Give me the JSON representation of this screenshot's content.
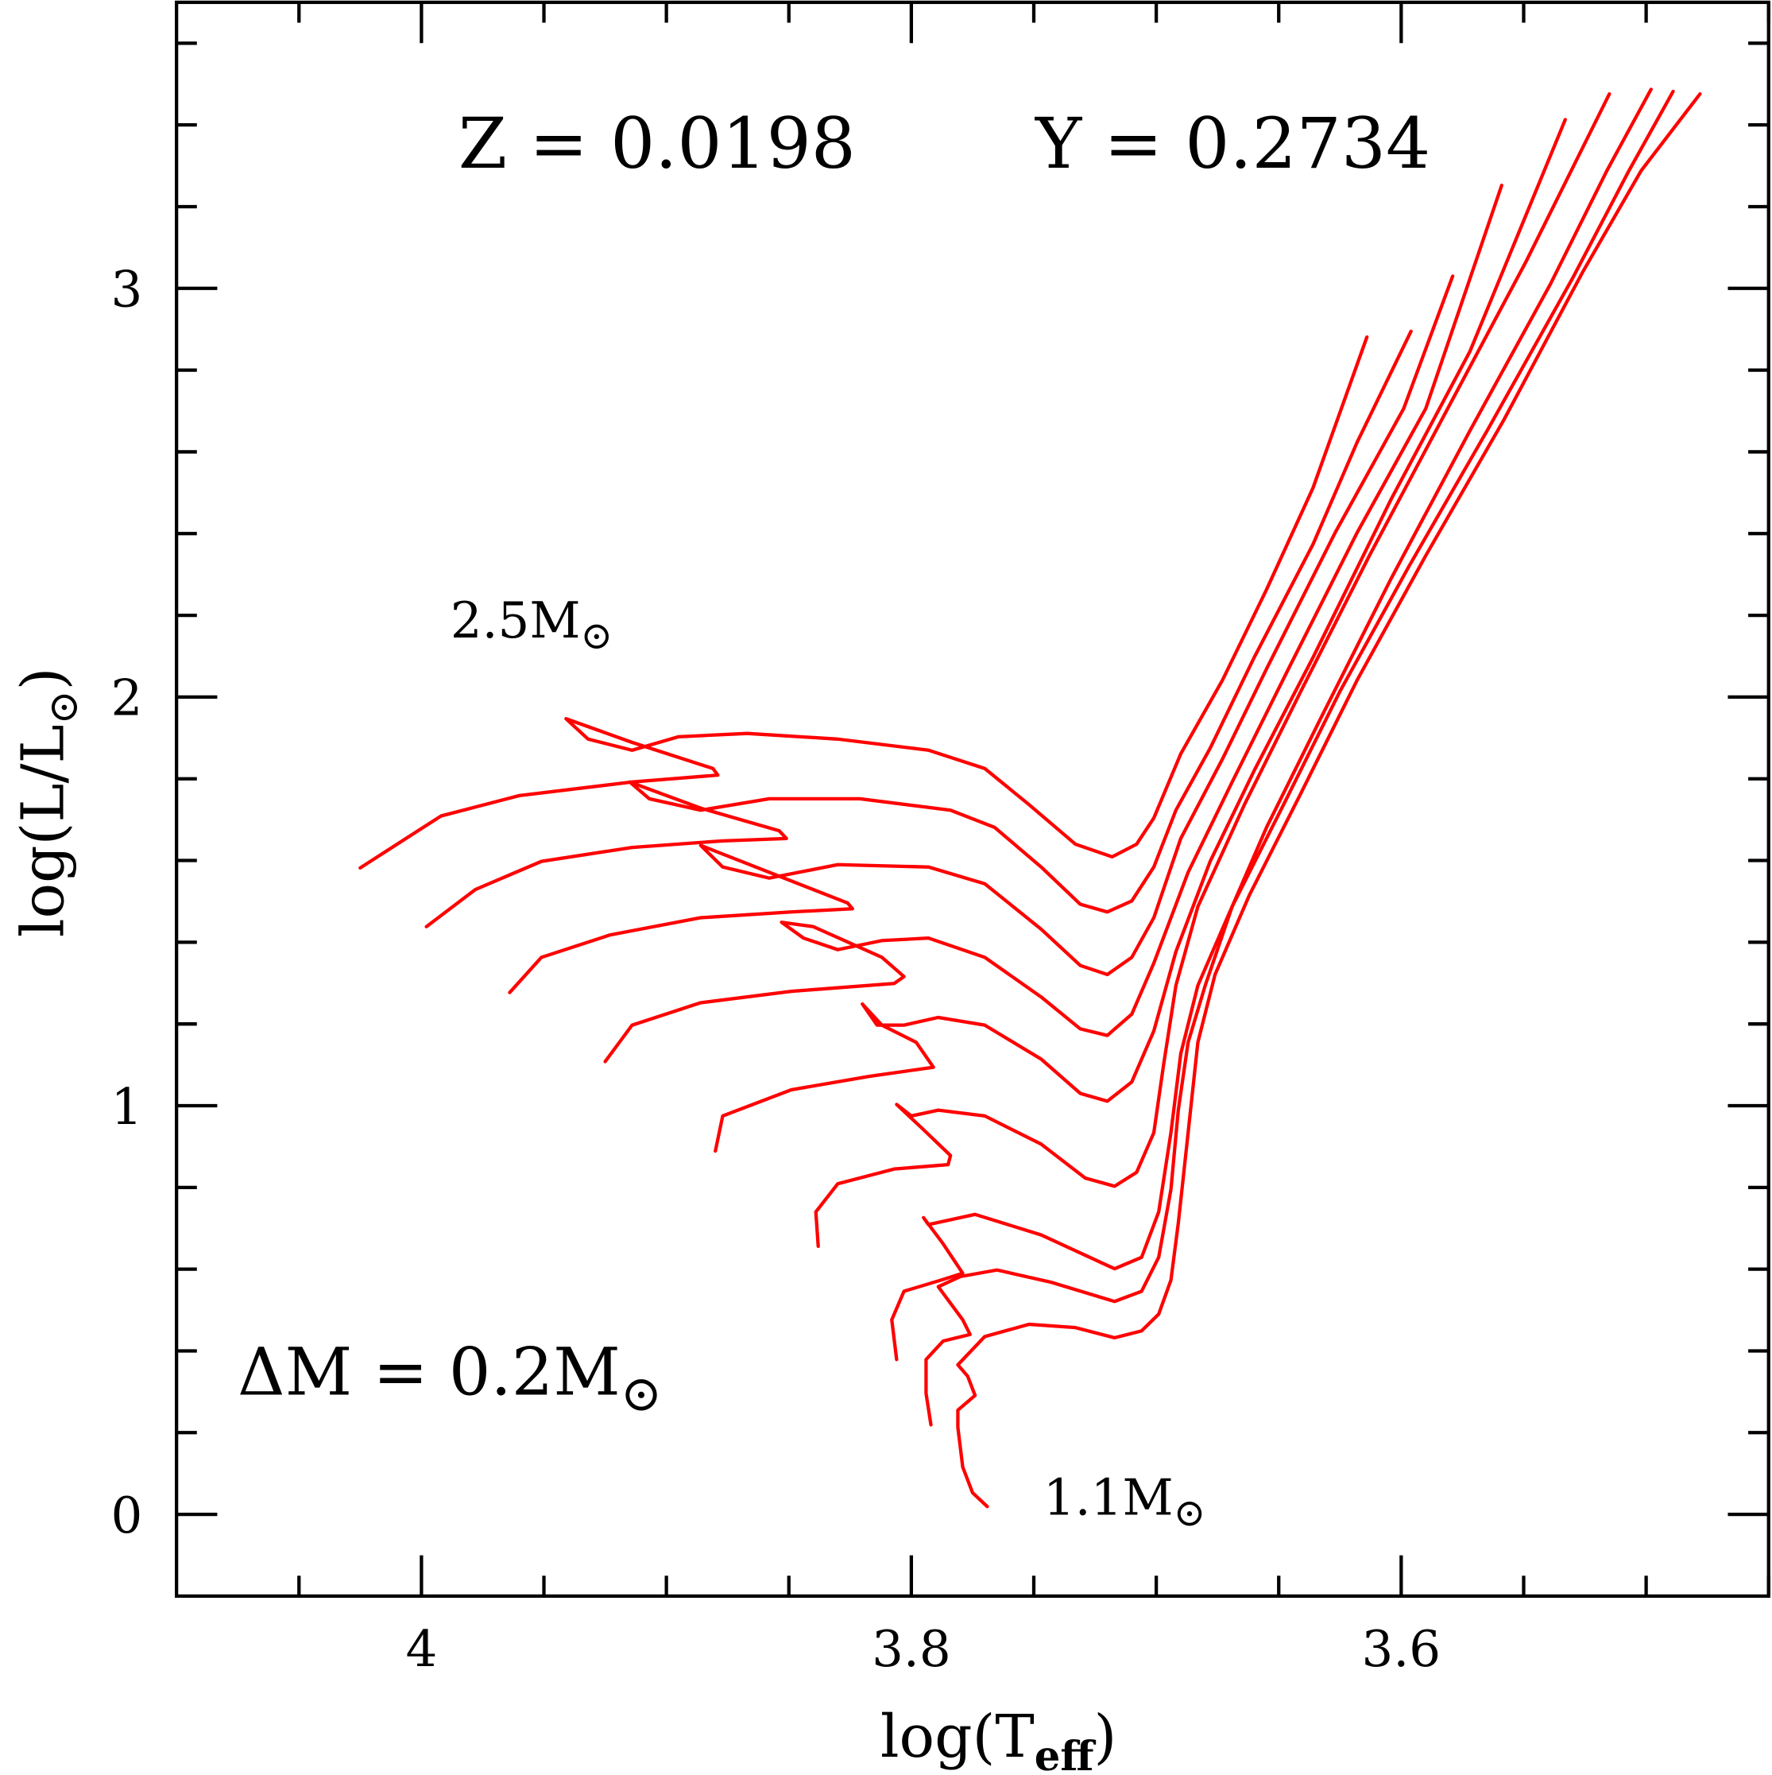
{
  "chart_data": {
    "type": "line",
    "xlabel": {
      "main": "log(T",
      "sub": "eff",
      "end": ")"
    },
    "ylabel": {
      "main": "log(L/L",
      "sub": "⊙",
      "end": ")"
    },
    "xlim": [
      4.1,
      3.45
    ],
    "ylim": [
      -0.2,
      3.7
    ],
    "x_ticks": {
      "major": [
        4,
        3.8,
        3.6
      ],
      "labels": [
        "4",
        "3.8",
        "3.6"
      ],
      "minor_step": 0.05
    },
    "y_ticks": {
      "major": [
        0,
        1,
        2,
        3
      ],
      "labels": [
        "0",
        "1",
        "2",
        "3"
      ],
      "minor_step": 0.2
    },
    "grid": false,
    "color": "#ff0000",
    "annotations": {
      "z": "Z = 0.0198",
      "y": "Y = 0.2734",
      "top_mass": {
        "main": "2.5M",
        "sub": "⊙"
      },
      "bottom_mass": {
        "main": "1.1M",
        "sub": "⊙"
      },
      "delta_m": {
        "main": "ΔM = 0.2M",
        "sub": "⊙"
      }
    },
    "series": [
      {
        "name": "track-1",
        "points": [
          [
            3.769,
            0.019
          ],
          [
            3.775,
            0.053
          ],
          [
            3.779,
            0.116
          ],
          [
            3.781,
            0.213
          ],
          [
            3.781,
            0.255
          ],
          [
            3.774,
            0.291
          ],
          [
            3.777,
            0.338
          ],
          [
            3.781,
            0.366
          ],
          [
            3.77,
            0.435
          ],
          [
            3.752,
            0.465
          ],
          [
            3.733,
            0.457
          ],
          [
            3.717,
            0.432
          ],
          [
            3.706,
            0.449
          ],
          [
            3.699,
            0.49
          ],
          [
            3.694,
            0.573
          ],
          [
            3.691,
            0.712
          ],
          [
            3.687,
            0.934
          ],
          [
            3.683,
            1.155
          ],
          [
            3.676,
            1.321
          ],
          [
            3.662,
            1.515
          ],
          [
            3.641,
            1.764
          ],
          [
            3.618,
            2.041
          ],
          [
            3.59,
            2.346
          ],
          [
            3.558,
            2.679
          ],
          [
            3.526,
            3.039
          ],
          [
            3.502,
            3.288
          ],
          [
            3.478,
            3.476
          ]
        ]
      },
      {
        "name": "track-2",
        "points": [
          [
            3.792,
            0.219
          ],
          [
            3.794,
            0.296
          ],
          [
            3.794,
            0.379
          ],
          [
            3.787,
            0.424
          ],
          [
            3.776,
            0.44
          ],
          [
            3.779,
            0.476
          ],
          [
            3.789,
            0.557
          ],
          [
            3.78,
            0.582
          ],
          [
            3.765,
            0.598
          ],
          [
            3.743,
            0.568
          ],
          [
            3.717,
            0.521
          ],
          [
            3.706,
            0.546
          ],
          [
            3.699,
            0.629
          ],
          [
            3.694,
            0.795
          ],
          [
            3.691,
            0.989
          ],
          [
            3.687,
            1.155
          ],
          [
            3.68,
            1.294
          ],
          [
            3.669,
            1.487
          ],
          [
            3.648,
            1.737
          ],
          [
            3.625,
            2.014
          ],
          [
            3.597,
            2.318
          ],
          [
            3.565,
            2.651
          ],
          [
            3.53,
            3.025
          ],
          [
            3.507,
            3.288
          ],
          [
            3.489,
            3.482
          ]
        ]
      },
      {
        "name": "track-3",
        "points": [
          [
            3.806,
            0.379
          ],
          [
            3.808,
            0.476
          ],
          [
            3.803,
            0.546
          ],
          [
            3.788,
            0.573
          ],
          [
            3.779,
            0.59
          ],
          [
            3.787,
            0.662
          ],
          [
            3.795,
            0.726
          ],
          [
            3.793,
            0.709
          ],
          [
            3.774,
            0.734
          ],
          [
            3.747,
            0.684
          ],
          [
            3.717,
            0.601
          ],
          [
            3.706,
            0.629
          ],
          [
            3.699,
            0.74
          ],
          [
            3.694,
            0.934
          ],
          [
            3.69,
            1.127
          ],
          [
            3.683,
            1.294
          ],
          [
            3.671,
            1.46
          ],
          [
            3.655,
            1.681
          ],
          [
            3.632,
            1.958
          ],
          [
            3.604,
            2.291
          ],
          [
            3.572,
            2.651
          ],
          [
            3.539,
            3.011
          ],
          [
            3.516,
            3.288
          ],
          [
            3.498,
            3.487
          ]
        ]
      },
      {
        "name": "track-4",
        "points": [
          [
            3.838,
            0.656
          ],
          [
            3.839,
            0.74
          ],
          [
            3.83,
            0.809
          ],
          [
            3.807,
            0.845
          ],
          [
            3.785,
            0.856
          ],
          [
            3.784,
            0.878
          ],
          [
            3.796,
            0.947
          ],
          [
            3.806,
            1.003
          ],
          [
            3.8,
            0.975
          ],
          [
            3.789,
            0.989
          ],
          [
            3.77,
            0.975
          ],
          [
            3.747,
            0.906
          ],
          [
            3.729,
            0.823
          ],
          [
            3.717,
            0.803
          ],
          [
            3.708,
            0.837
          ],
          [
            3.701,
            0.934
          ],
          [
            3.697,
            1.1
          ],
          [
            3.692,
            1.294
          ],
          [
            3.683,
            1.487
          ],
          [
            3.664,
            1.737
          ],
          [
            3.641,
            2.014
          ],
          [
            3.613,
            2.346
          ],
          [
            3.581,
            2.706
          ],
          [
            3.549,
            3.066
          ],
          [
            3.515,
            3.476
          ]
        ]
      },
      {
        "name": "track-5",
        "points": [
          [
            3.88,
            0.889
          ],
          [
            3.877,
            0.975
          ],
          [
            3.849,
            1.039
          ],
          [
            3.817,
            1.072
          ],
          [
            3.791,
            1.094
          ],
          [
            3.798,
            1.155
          ],
          [
            3.812,
            1.197
          ],
          [
            3.82,
            1.249
          ],
          [
            3.814,
            1.197
          ],
          [
            3.803,
            1.197
          ],
          [
            3.789,
            1.216
          ],
          [
            3.77,
            1.197
          ],
          [
            3.747,
            1.114
          ],
          [
            3.731,
            1.03
          ],
          [
            3.72,
            1.011
          ],
          [
            3.71,
            1.058
          ],
          [
            3.701,
            1.183
          ],
          [
            3.692,
            1.377
          ],
          [
            3.678,
            1.598
          ],
          [
            3.66,
            1.82
          ],
          [
            3.636,
            2.097
          ],
          [
            3.604,
            2.485
          ],
          [
            3.572,
            2.845
          ],
          [
            3.533,
            3.413
          ]
        ]
      },
      {
        "name": "track-6",
        "points": [
          [
            3.925,
            1.108
          ],
          [
            3.914,
            1.197
          ],
          [
            3.886,
            1.252
          ],
          [
            3.849,
            1.28
          ],
          [
            3.807,
            1.299
          ],
          [
            3.803,
            1.316
          ],
          [
            3.812,
            1.363
          ],
          [
            3.84,
            1.438
          ],
          [
            3.853,
            1.449
          ],
          [
            3.844,
            1.41
          ],
          [
            3.83,
            1.382
          ],
          [
            3.812,
            1.404
          ],
          [
            3.793,
            1.41
          ],
          [
            3.77,
            1.363
          ],
          [
            3.747,
            1.266
          ],
          [
            3.731,
            1.188
          ],
          [
            3.72,
            1.172
          ],
          [
            3.71,
            1.224
          ],
          [
            3.701,
            1.349
          ],
          [
            3.687,
            1.571
          ],
          [
            3.669,
            1.792
          ],
          [
            3.646,
            2.069
          ],
          [
            3.618,
            2.402
          ],
          [
            3.59,
            2.706
          ],
          [
            3.559,
            3.252
          ]
        ]
      },
      {
        "name": "track-7",
        "points": [
          [
            3.964,
            1.277
          ],
          [
            3.951,
            1.363
          ],
          [
            3.923,
            1.418
          ],
          [
            3.886,
            1.46
          ],
          [
            3.849,
            1.474
          ],
          [
            3.824,
            1.482
          ],
          [
            3.826,
            1.496
          ],
          [
            3.858,
            1.571
          ],
          [
            3.886,
            1.637
          ],
          [
            3.877,
            1.584
          ],
          [
            3.858,
            1.557
          ],
          [
            3.83,
            1.59
          ],
          [
            3.793,
            1.584
          ],
          [
            3.77,
            1.543
          ],
          [
            3.747,
            1.432
          ],
          [
            3.731,
            1.343
          ],
          [
            3.72,
            1.321
          ],
          [
            3.71,
            1.363
          ],
          [
            3.701,
            1.46
          ],
          [
            3.69,
            1.654
          ],
          [
            3.673,
            1.848
          ],
          [
            3.655,
            2.069
          ],
          [
            3.627,
            2.402
          ],
          [
            3.599,
            2.706
          ],
          [
            3.579,
            3.03
          ]
        ]
      },
      {
        "name": "track-8",
        "points": [
          [
            3.998,
            1.438
          ],
          [
            3.978,
            1.529
          ],
          [
            3.951,
            1.598
          ],
          [
            3.914,
            1.632
          ],
          [
            3.877,
            1.648
          ],
          [
            3.851,
            1.654
          ],
          [
            3.854,
            1.673
          ],
          [
            3.886,
            1.728
          ],
          [
            3.915,
            1.792
          ],
          [
            3.907,
            1.751
          ],
          [
            3.886,
            1.723
          ],
          [
            3.858,
            1.751
          ],
          [
            3.821,
            1.751
          ],
          [
            3.784,
            1.723
          ],
          [
            3.766,
            1.681
          ],
          [
            3.747,
            1.584
          ],
          [
            3.731,
            1.493
          ],
          [
            3.72,
            1.474
          ],
          [
            3.71,
            1.501
          ],
          [
            3.701,
            1.584
          ],
          [
            3.692,
            1.723
          ],
          [
            3.678,
            1.875
          ],
          [
            3.66,
            2.097
          ],
          [
            3.636,
            2.374
          ],
          [
            3.618,
            2.623
          ],
          [
            3.596,
            2.895
          ]
        ]
      },
      {
        "name": "track-9",
        "points": [
          [
            4.025,
            1.582
          ],
          [
            3.992,
            1.709
          ],
          [
            3.96,
            1.759
          ],
          [
            3.914,
            1.792
          ],
          [
            3.879,
            1.809
          ],
          [
            3.881,
            1.825
          ],
          [
            3.914,
            1.889
          ],
          [
            3.941,
            1.947
          ],
          [
            3.932,
            1.897
          ],
          [
            3.914,
            1.87
          ],
          [
            3.895,
            1.903
          ],
          [
            3.867,
            1.911
          ],
          [
            3.83,
            1.897
          ],
          [
            3.793,
            1.87
          ],
          [
            3.77,
            1.825
          ],
          [
            3.752,
            1.737
          ],
          [
            3.733,
            1.64
          ],
          [
            3.718,
            1.609
          ],
          [
            3.708,
            1.64
          ],
          [
            3.701,
            1.704
          ],
          [
            3.69,
            1.861
          ],
          [
            3.673,
            2.041
          ],
          [
            3.655,
            2.263
          ],
          [
            3.636,
            2.512
          ],
          [
            3.614,
            2.881
          ]
        ]
      }
    ]
  }
}
